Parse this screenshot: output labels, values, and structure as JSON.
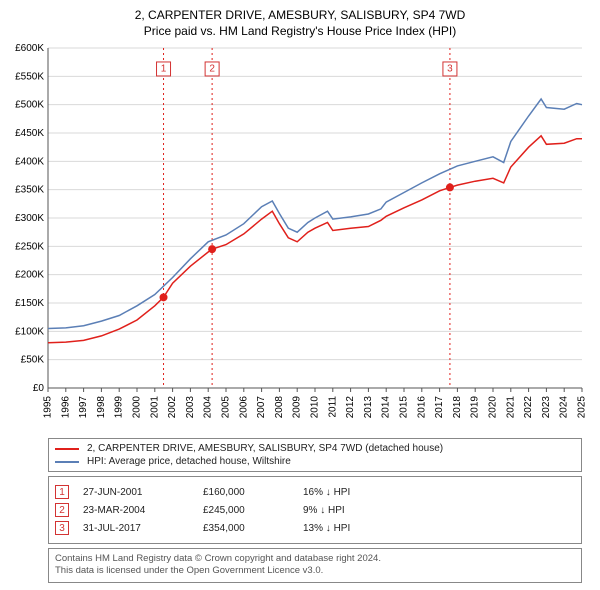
{
  "title_line1": "2, CARPENTER DRIVE, AMESBURY, SALISBURY, SP4 7WD",
  "title_line2": "Price paid vs. HM Land Registry's House Price Index (HPI)",
  "colors": {
    "background": "#ffffff",
    "grid": "#d9d9d9",
    "axis": "#555555",
    "series_property": "#e0201b",
    "series_hpi": "#5b7fb6",
    "marker_line": "#e0201b",
    "marker_box_border": "#d33333",
    "marker_box_text": "#d33333",
    "legend_border": "#888888",
    "footer_text": "#555555"
  },
  "chart": {
    "type": "line",
    "x_axis": {
      "min": 1995,
      "max": 2025,
      "ticks": [
        1995,
        1996,
        1997,
        1998,
        1999,
        2000,
        2001,
        2002,
        2003,
        2004,
        2005,
        2006,
        2007,
        2008,
        2009,
        2010,
        2011,
        2012,
        2013,
        2014,
        2015,
        2016,
        2017,
        2018,
        2019,
        2020,
        2021,
        2022,
        2023,
        2024,
        2025
      ]
    },
    "y_axis": {
      "min": 0,
      "max": 600000,
      "step": 50000,
      "labels": [
        "£0",
        "£50K",
        "£100K",
        "£150K",
        "£200K",
        "£250K",
        "£300K",
        "£350K",
        "£400K",
        "£450K",
        "£500K",
        "£550K",
        "£600K"
      ]
    },
    "series": [
      {
        "key": "property",
        "color": "#e0201b",
        "points": [
          [
            1995,
            80000
          ],
          [
            1996,
            81000
          ],
          [
            1997,
            84000
          ],
          [
            1998,
            92000
          ],
          [
            1999,
            104000
          ],
          [
            2000,
            120000
          ],
          [
            2001,
            145000
          ],
          [
            2001.49,
            160000
          ],
          [
            2002,
            185000
          ],
          [
            2003,
            215000
          ],
          [
            2004,
            240000
          ],
          [
            2004.22,
            245000
          ],
          [
            2005,
            253000
          ],
          [
            2006,
            272000
          ],
          [
            2007,
            298000
          ],
          [
            2007.6,
            312000
          ],
          [
            2008,
            290000
          ],
          [
            2008.5,
            265000
          ],
          [
            2009,
            258000
          ],
          [
            2009.6,
            275000
          ],
          [
            2010,
            282000
          ],
          [
            2010.7,
            292000
          ],
          [
            2011,
            278000
          ],
          [
            2012,
            282000
          ],
          [
            2013,
            285000
          ],
          [
            2013.7,
            296000
          ],
          [
            2014,
            303000
          ],
          [
            2015,
            318000
          ],
          [
            2016,
            332000
          ],
          [
            2017,
            348000
          ],
          [
            2017.58,
            354000
          ],
          [
            2018,
            358000
          ],
          [
            2019,
            365000
          ],
          [
            2020,
            370000
          ],
          [
            2020.6,
            362000
          ],
          [
            2021,
            390000
          ],
          [
            2022,
            425000
          ],
          [
            2022.7,
            445000
          ],
          [
            2023,
            430000
          ],
          [
            2024,
            432000
          ],
          [
            2024.7,
            440000
          ],
          [
            2025,
            440000
          ]
        ]
      },
      {
        "key": "hpi",
        "color": "#5b7fb6",
        "points": [
          [
            1995,
            105000
          ],
          [
            1996,
            106000
          ],
          [
            1997,
            110000
          ],
          [
            1998,
            118000
          ],
          [
            1999,
            128000
          ],
          [
            2000,
            145000
          ],
          [
            2001,
            165000
          ],
          [
            2002,
            195000
          ],
          [
            2003,
            228000
          ],
          [
            2004,
            258000
          ],
          [
            2005,
            270000
          ],
          [
            2006,
            290000
          ],
          [
            2007,
            320000
          ],
          [
            2007.6,
            330000
          ],
          [
            2008,
            308000
          ],
          [
            2008.5,
            282000
          ],
          [
            2009,
            275000
          ],
          [
            2009.6,
            292000
          ],
          [
            2010,
            300000
          ],
          [
            2010.7,
            312000
          ],
          [
            2011,
            298000
          ],
          [
            2012,
            302000
          ],
          [
            2013,
            307000
          ],
          [
            2013.7,
            316000
          ],
          [
            2014,
            328000
          ],
          [
            2015,
            345000
          ],
          [
            2016,
            362000
          ],
          [
            2017,
            378000
          ],
          [
            2018,
            392000
          ],
          [
            2019,
            400000
          ],
          [
            2020,
            408000
          ],
          [
            2020.6,
            398000
          ],
          [
            2021,
            435000
          ],
          [
            2022,
            480000
          ],
          [
            2022.7,
            510000
          ],
          [
            2023,
            495000
          ],
          [
            2024,
            492000
          ],
          [
            2024.7,
            502000
          ],
          [
            2025,
            500000
          ]
        ]
      }
    ],
    "markers": [
      {
        "n": 1,
        "x": 2001.49,
        "y": 160000,
        "badge_x": 2001.49,
        "badge_y_top": 563000
      },
      {
        "n": 2,
        "x": 2004.22,
        "y": 245000,
        "badge_x": 2004.22,
        "badge_y_top": 563000
      },
      {
        "n": 3,
        "x": 2017.58,
        "y": 354000,
        "badge_x": 2017.58,
        "badge_y_top": 563000
      }
    ]
  },
  "legend": [
    {
      "color": "#e0201b",
      "label": "2, CARPENTER DRIVE, AMESBURY, SALISBURY, SP4 7WD (detached house)"
    },
    {
      "color": "#5b7fb6",
      "label": "HPI: Average price, detached house, Wiltshire"
    }
  ],
  "events": [
    {
      "n": "1",
      "date": "27-JUN-2001",
      "price": "£160,000",
      "delta": "16% ↓ HPI"
    },
    {
      "n": "2",
      "date": "23-MAR-2004",
      "price": "£245,000",
      "delta": "9% ↓ HPI"
    },
    {
      "n": "3",
      "date": "31-JUL-2017",
      "price": "£354,000",
      "delta": "13% ↓ HPI"
    }
  ],
  "footer_line1": "Contains HM Land Registry data © Crown copyright and database right 2024.",
  "footer_line2": "This data is licensed under the Open Government Licence v3.0."
}
